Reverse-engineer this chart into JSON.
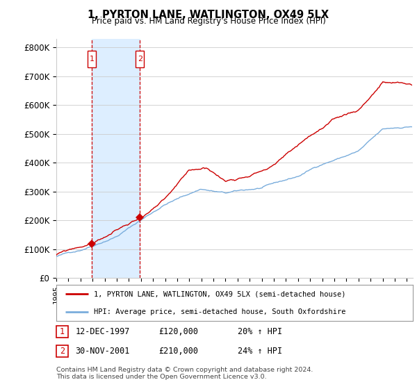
{
  "title": "1, PYRTON LANE, WATLINGTON, OX49 5LX",
  "subtitle": "Price paid vs. HM Land Registry's House Price Index (HPI)",
  "ylabel_ticks": [
    "£0",
    "£100K",
    "£200K",
    "£300K",
    "£400K",
    "£500K",
    "£600K",
    "£700K",
    "£800K"
  ],
  "ytick_values": [
    0,
    100000,
    200000,
    300000,
    400000,
    500000,
    600000,
    700000,
    800000
  ],
  "ylim": [
    0,
    830000
  ],
  "xlim_start": 1995.0,
  "xlim_end": 2024.5,
  "purchase1_date": 1997.95,
  "purchase1_price": 120000,
  "purchase2_date": 2001.92,
  "purchase2_price": 210000,
  "red_line_color": "#cc0000",
  "blue_line_color": "#7aaddc",
  "shade_color": "#ddeeff",
  "background_color": "#ffffff",
  "grid_color": "#cccccc",
  "legend_label1": "1, PYRTON LANE, WATLINGTON, OX49 5LX (semi-detached house)",
  "legend_label2": "HPI: Average price, semi-detached house, South Oxfordshire",
  "table_entries": [
    {
      "num": "1",
      "date": "12-DEC-1997",
      "price": "£120,000",
      "hpi": "20% ↑ HPI"
    },
    {
      "num": "2",
      "date": "30-NOV-2001",
      "price": "£210,000",
      "hpi": "24% ↑ HPI"
    }
  ],
  "footnote": "Contains HM Land Registry data © Crown copyright and database right 2024.\nThis data is licensed under the Open Government Licence v3.0.",
  "xtick_years": [
    1995,
    1996,
    1997,
    1998,
    1999,
    2000,
    2001,
    2002,
    2003,
    2004,
    2005,
    2006,
    2007,
    2008,
    2009,
    2010,
    2011,
    2012,
    2013,
    2014,
    2015,
    2016,
    2017,
    2018,
    2019,
    2020,
    2021,
    2022,
    2023,
    2024
  ]
}
